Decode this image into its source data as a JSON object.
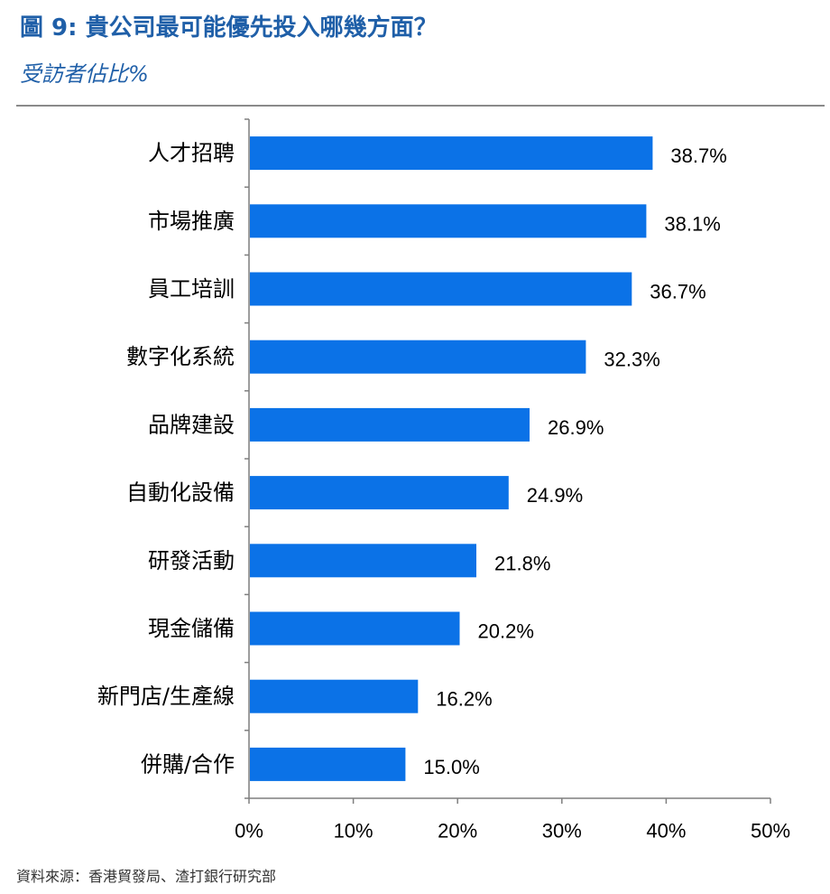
{
  "figure": {
    "title": "圖 9: 貴公司最可能優先投入哪幾方面？",
    "subtitle": "受訪者佔比%",
    "source": "資料來源：香港貿發局、渣打銀行研究部"
  },
  "chart_data": {
    "type": "bar",
    "orientation": "horizontal",
    "categories": [
      "人才招聘",
      "市場推廣",
      "員工培訓",
      "數字化系統",
      "品牌建設",
      "自動化設備",
      "研發活動",
      "現金儲備",
      "新門店/生產線",
      "併購/合作"
    ],
    "values": [
      38.7,
      38.1,
      36.7,
      32.3,
      26.9,
      24.9,
      21.8,
      20.2,
      16.2,
      15.0
    ],
    "value_labels": [
      "38.7%",
      "38.1%",
      "36.7%",
      "32.3%",
      "26.9%",
      "24.9%",
      "21.8%",
      "20.2%",
      "16.2%",
      "15.0%"
    ],
    "xlim": [
      0,
      50
    ],
    "xticks": [
      0,
      10,
      20,
      30,
      40,
      50
    ],
    "xtick_labels": [
      "0%",
      "10%",
      "20%",
      "30%",
      "40%",
      "50%"
    ],
    "bar_color": "#0b72e7",
    "grid": false
  }
}
